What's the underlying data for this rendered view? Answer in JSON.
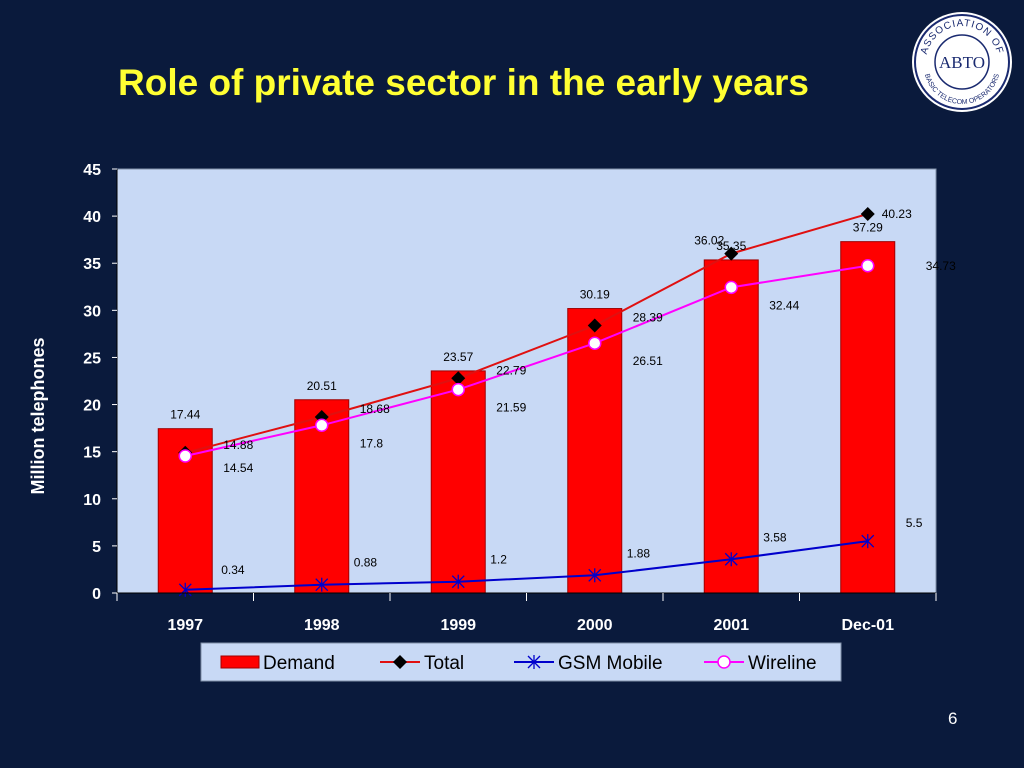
{
  "slide": {
    "title": "Role of private sector in the early years",
    "page_number": "6",
    "logo": {
      "icon": "abto-seal-logo",
      "ring_text": "ASSOCIATION OF BASIC TELECOM OPERATORS",
      "center_text": "ABTO"
    }
  },
  "colors": {
    "background": "#0a1a3c",
    "plot_area": "#c8d9f5",
    "demand": "#ff0000",
    "total": "#e01010",
    "gsm": "#0000cc",
    "wireline": "#ff00ff",
    "title": "#ffff33"
  },
  "chart_data": {
    "type": "bar",
    "title": "",
    "xlabel": "",
    "ylabel": "Million telephones",
    "ylim": [
      0,
      45
    ],
    "yticks": [
      0,
      5,
      10,
      15,
      20,
      25,
      30,
      35,
      40,
      45
    ],
    "categories": [
      "1997",
      "1998",
      "1999",
      "2000",
      "2001",
      "Dec-01"
    ],
    "grid": false,
    "legend_position": "bottom",
    "series": [
      {
        "name": "Demand",
        "kind": "bar",
        "values": [
          17.44,
          20.51,
          23.57,
          30.19,
          35.35,
          37.29
        ],
        "labels": [
          "17.44",
          "20.51",
          "23.57",
          "30.19",
          "35.35",
          "37.29"
        ]
      },
      {
        "name": "Total",
        "kind": "line",
        "marker": "diamond",
        "values": [
          14.88,
          18.68,
          22.79,
          28.39,
          36.02,
          40.23
        ],
        "labels": [
          "14.88",
          "18.68",
          "22.79",
          "28.39",
          "36.02",
          "40.23"
        ]
      },
      {
        "name": "GSM Mobile",
        "kind": "line",
        "marker": "star",
        "values": [
          0.34,
          0.88,
          1.2,
          1.88,
          3.58,
          5.5
        ],
        "labels": [
          "0.34",
          "0.88",
          "1.2",
          "1.88",
          "3.58",
          "5.5"
        ]
      },
      {
        "name": "Wireline",
        "kind": "line",
        "marker": "circle",
        "values": [
          14.54,
          17.8,
          21.59,
          26.51,
          32.44,
          34.73
        ],
        "labels": [
          "14.54",
          "17.8",
          "21.59",
          "26.51",
          "32.44",
          "34.73"
        ]
      }
    ]
  }
}
